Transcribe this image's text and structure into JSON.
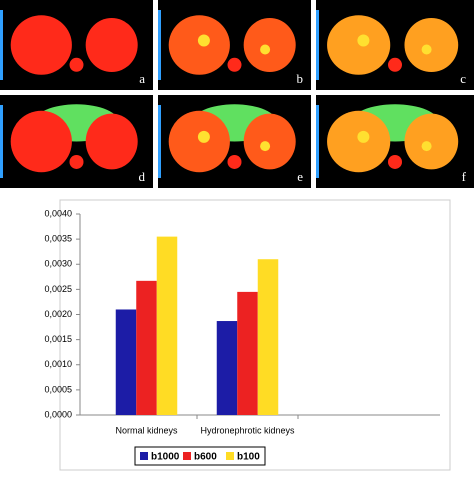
{
  "image_panels": {
    "labels": [
      "a",
      "b",
      "c",
      "d",
      "e",
      "f"
    ]
  },
  "chart_data": {
    "type": "bar",
    "categories": [
      "Normal kidneys",
      "Hydronephrotic kidneys"
    ],
    "series": [
      {
        "name": "b1000",
        "color": "#1c1ca6",
        "values": [
          0.0021,
          0.00187
        ]
      },
      {
        "name": "b600",
        "color": "#ec2222",
        "values": [
          0.00267,
          0.00245
        ]
      },
      {
        "name": "b100",
        "color": "#ffdc24",
        "values": [
          0.00355,
          0.0031
        ]
      }
    ],
    "ylim": [
      0,
      0.004
    ],
    "yticks": [
      {
        "value": 0,
        "label": "0,0000"
      },
      {
        "value": 0.0005,
        "label": "0,0005"
      },
      {
        "value": 0.001,
        "label": "0,0010"
      },
      {
        "value": 0.0015,
        "label": "0,0015"
      },
      {
        "value": 0.002,
        "label": "0,0020"
      },
      {
        "value": 0.0025,
        "label": "0,0025"
      },
      {
        "value": 0.003,
        "label": "0,0030"
      },
      {
        "value": 0.0035,
        "label": "0,0035"
      },
      {
        "value": 0.004,
        "label": "0,0040"
      }
    ],
    "grid": false
  }
}
